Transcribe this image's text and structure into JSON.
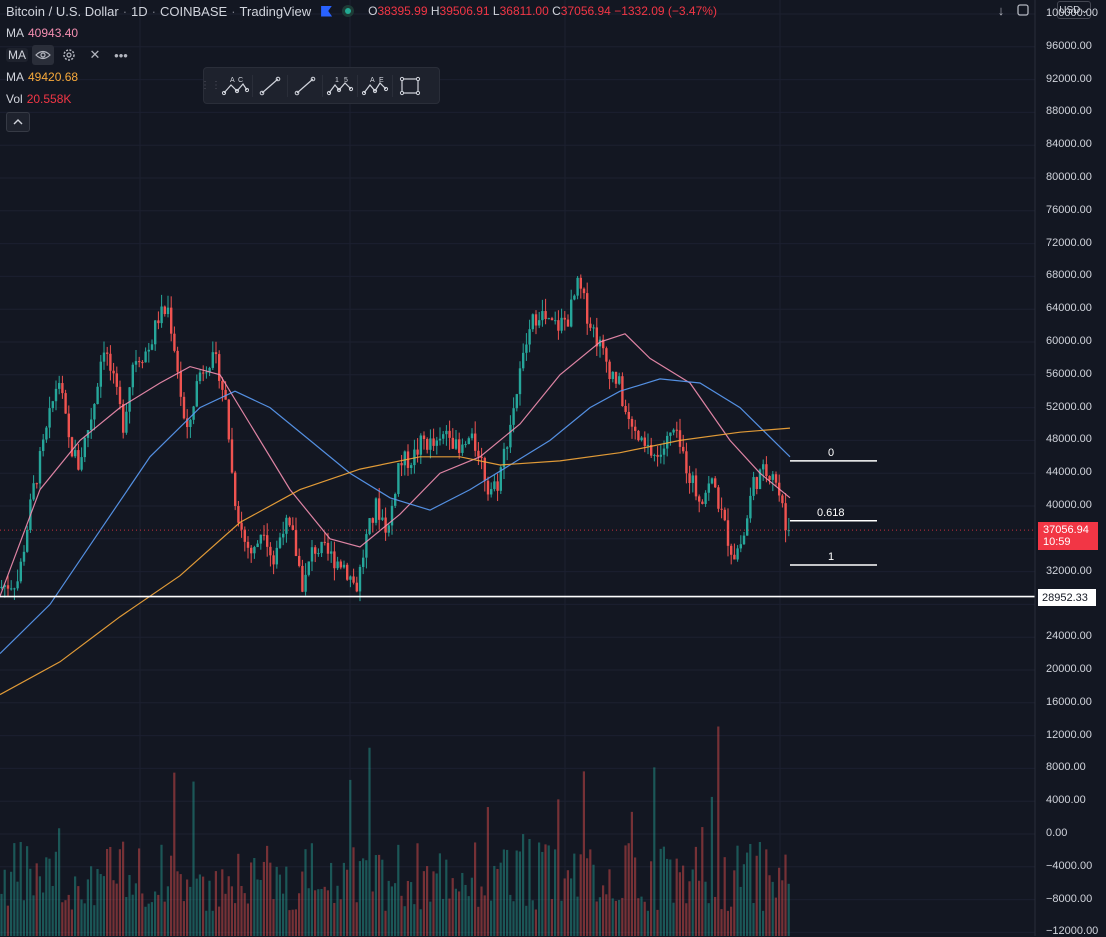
{
  "header": {
    "symbol": "Bitcoin / U.S. Dollar",
    "interval": "1D",
    "exchange": "COINBASE",
    "source": "TradingView",
    "ohlc": {
      "o_label": "O",
      "o": "38395.99",
      "h_label": "H",
      "h": "39506.91",
      "l_label": "L",
      "l": "36811.00",
      "c_label": "C",
      "c": "37056.94",
      "change": "−1332.09 (−3.47%)"
    }
  },
  "indicators": [
    {
      "name": "MA",
      "value": "40943.40",
      "color": "#f48fb1"
    },
    {
      "name": "MA",
      "value": "",
      "color": "#5b9cf6"
    },
    {
      "name": "MA",
      "value": "49420.68",
      "color": "#f7a93a"
    },
    {
      "name": "Vol",
      "value": "20.558K",
      "color": "#f23645"
    }
  ],
  "currency": "USD",
  "price_tag": {
    "value": "37056.94",
    "countdown": "10:59"
  },
  "horizontal_line": {
    "label": "28952.33",
    "price": 28952.33
  },
  "drawing_toolbar": [
    "abcd-pattern-icon",
    "trend-line-icon",
    "ray-line-icon",
    "elliott-wave-icon",
    "abcde-pattern-icon",
    "rectangle-icon"
  ],
  "colors": {
    "up": "#26a69a",
    "down": "#ef5350",
    "background": "#131722",
    "grid": "#1f2433"
  },
  "chart_data": {
    "type": "candlestick",
    "y_axis_ticks": [
      "100000.00",
      "96000.00",
      "92000.00",
      "88000.00",
      "84000.00",
      "80000.00",
      "76000.00",
      "72000.00",
      "68000.00",
      "64000.00",
      "60000.00",
      "56000.00",
      "52000.00",
      "48000.00",
      "44000.00",
      "40000.00",
      "36000.00",
      "32000.00",
      "28000.00",
      "24000.00",
      "20000.00",
      "16000.00",
      "12000.00",
      "8000.00",
      "4000.00",
      "0.00",
      "−4000.00",
      "−8000.00",
      "−12000.00"
    ],
    "ylim": [
      -12000,
      100000
    ],
    "last_close": 37056.94,
    "price_path": [
      [
        0,
        30000
      ],
      [
        20,
        31000
      ],
      [
        35,
        42000
      ],
      [
        50,
        50000
      ],
      [
        60,
        56000
      ],
      [
        70,
        48000
      ],
      [
        80,
        45000
      ],
      [
        95,
        52000
      ],
      [
        105,
        60000
      ],
      [
        115,
        55000
      ],
      [
        125,
        50000
      ],
      [
        135,
        58000
      ],
      [
        150,
        59000
      ],
      [
        160,
        63000
      ],
      [
        170,
        64000
      ],
      [
        178,
        58000
      ],
      [
        188,
        48000
      ],
      [
        200,
        56000
      ],
      [
        210,
        58000
      ],
      [
        220,
        57000
      ],
      [
        228,
        52000
      ],
      [
        235,
        42000
      ],
      [
        245,
        36000
      ],
      [
        255,
        34000
      ],
      [
        265,
        38000
      ],
      [
        275,
        33000
      ],
      [
        285,
        38000
      ],
      [
        295,
        36000
      ],
      [
        305,
        30000
      ],
      [
        315,
        35000
      ],
      [
        330,
        34000
      ],
      [
        345,
        33000
      ],
      [
        358,
        30000
      ],
      [
        368,
        36000
      ],
      [
        378,
        40000
      ],
      [
        390,
        37000
      ],
      [
        400,
        45000
      ],
      [
        415,
        46000
      ],
      [
        425,
        48000
      ],
      [
        440,
        47000
      ],
      [
        450,
        50000
      ],
      [
        460,
        46000
      ],
      [
        470,
        48000
      ],
      [
        480,
        47000
      ],
      [
        490,
        42000
      ],
      [
        500,
        43000
      ],
      [
        510,
        49000
      ],
      [
        520,
        55000
      ],
      [
        530,
        61000
      ],
      [
        540,
        64000
      ],
      [
        550,
        62000
      ],
      [
        560,
        62000
      ],
      [
        570,
        63000
      ],
      [
        580,
        67000
      ],
      [
        590,
        63000
      ],
      [
        600,
        60000
      ],
      [
        610,
        57000
      ],
      [
        620,
        55000
      ],
      [
        630,
        50000
      ],
      [
        645,
        47000
      ],
      [
        660,
        46000
      ],
      [
        675,
        49000
      ],
      [
        685,
        46000
      ],
      [
        700,
        41000
      ],
      [
        715,
        43000
      ],
      [
        725,
        38000
      ],
      [
        735,
        34000
      ],
      [
        745,
        36000
      ],
      [
        755,
        43000
      ],
      [
        765,
        44000
      ],
      [
        775,
        44500
      ],
      [
        785,
        39000
      ],
      [
        790,
        37057
      ]
    ],
    "moving_averages": [
      {
        "name": "MA",
        "color": "#f48fb1",
        "points": [
          [
            0,
            29000
          ],
          [
            40,
            42000
          ],
          [
            80,
            48000
          ],
          [
            120,
            52000
          ],
          [
            160,
            55000
          ],
          [
            190,
            57000
          ],
          [
            220,
            56000
          ],
          [
            250,
            50000
          ],
          [
            290,
            42000
          ],
          [
            330,
            36000
          ],
          [
            360,
            35000
          ],
          [
            400,
            39000
          ],
          [
            440,
            44000
          ],
          [
            480,
            46000
          ],
          [
            520,
            50000
          ],
          [
            560,
            56000
          ],
          [
            600,
            60000
          ],
          [
            625,
            61000
          ],
          [
            650,
            58000
          ],
          [
            690,
            55000
          ],
          [
            730,
            48000
          ],
          [
            760,
            44000
          ],
          [
            790,
            41000
          ]
        ]
      },
      {
        "name": "MA",
        "color": "#5b9cf6",
        "points": [
          [
            0,
            22000
          ],
          [
            50,
            28000
          ],
          [
            100,
            37000
          ],
          [
            150,
            46000
          ],
          [
            200,
            52000
          ],
          [
            235,
            54000
          ],
          [
            270,
            52000
          ],
          [
            310,
            48000
          ],
          [
            350,
            44000
          ],
          [
            390,
            41000
          ],
          [
            430,
            39500
          ],
          [
            470,
            42000
          ],
          [
            510,
            45000
          ],
          [
            550,
            48000
          ],
          [
            590,
            52000
          ],
          [
            620,
            54000
          ],
          [
            660,
            55500
          ],
          [
            700,
            55000
          ],
          [
            740,
            52000
          ],
          [
            790,
            46000
          ]
        ]
      },
      {
        "name": "MA",
        "color": "#f7a93a",
        "points": [
          [
            0,
            17000
          ],
          [
            60,
            21000
          ],
          [
            120,
            26500
          ],
          [
            180,
            31500
          ],
          [
            240,
            38000
          ],
          [
            300,
            42000
          ],
          [
            360,
            44500
          ],
          [
            420,
            46000
          ],
          [
            460,
            46000
          ],
          [
            500,
            45000
          ],
          [
            560,
            45500
          ],
          [
            620,
            46500
          ],
          [
            680,
            48000
          ],
          [
            740,
            49000
          ],
          [
            790,
            49500
          ]
        ]
      }
    ],
    "fibonacci": [
      {
        "label": "0",
        "price": 45500
      },
      {
        "label": "0.618",
        "price": 38200
      },
      {
        "label": "1",
        "price": 32800
      }
    ]
  }
}
